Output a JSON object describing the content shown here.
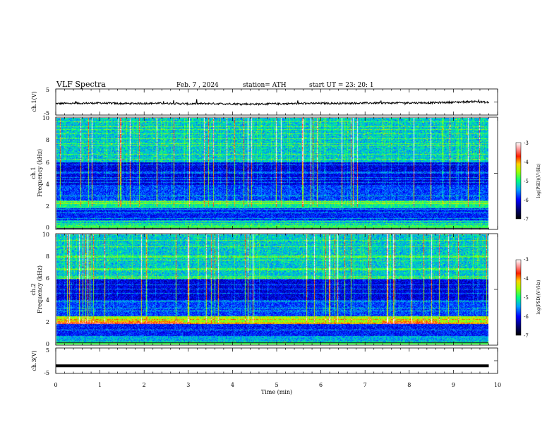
{
  "header": {
    "title": "VLF  Spectra",
    "date": "Feb. 7  , 2024",
    "station": "station= ATH",
    "start": "start  UT  =    23: 20: 1"
  },
  "chart_data": [
    {
      "type": "line",
      "name": "ch1-waveform",
      "ylabel": "ch.1(V)",
      "ylim": [
        -5,
        5
      ],
      "xlim": [
        0,
        10
      ],
      "yticks": [
        "5",
        "-5"
      ],
      "x": [
        0,
        0.5,
        1,
        1.5,
        2,
        2.5,
        3,
        3.5,
        4,
        4.5,
        5,
        5.5,
        6,
        6.5,
        7,
        7.5,
        8,
        8.5,
        9,
        9.5,
        9.8
      ],
      "y": [
        -0.6,
        -0.5,
        -0.4,
        -0.6,
        -0.5,
        -0.5,
        -0.7,
        -0.6,
        -0.7,
        -0.8,
        -0.7,
        -0.6,
        -0.5,
        -0.5,
        -0.4,
        -0.4,
        -0.3,
        -0.3,
        -0.1,
        0.2,
        -0.2
      ]
    },
    {
      "type": "heatmap",
      "name": "ch1-spectrogram",
      "ylabel_line1": "ch.1",
      "ylabel_line2": "Frequency (kHz)",
      "ylim": [
        0,
        10
      ],
      "xlim": [
        0,
        9.8
      ],
      "yticks": [
        "0",
        "2",
        "4",
        "6",
        "8",
        "10"
      ],
      "colorbar": {
        "label": "log(PSD)(V²/Hz)",
        "range": [
          -7,
          -3
        ],
        "ticks": [
          "-3",
          "-4",
          "-5",
          "-6",
          "-7"
        ]
      }
    },
    {
      "type": "heatmap",
      "name": "ch2-spectrogram",
      "ylabel_line1": "ch.2",
      "ylabel_line2": "Frequency (kHz)",
      "ylim": [
        0,
        10
      ],
      "xlim": [
        0,
        9.8
      ],
      "yticks": [
        "0",
        "2",
        "4",
        "6",
        "8",
        "10"
      ],
      "colorbar": {
        "label": "log(PSD)(V²/Hz)",
        "range": [
          -7,
          -3
        ],
        "ticks": [
          "-3",
          "-4",
          "-5",
          "-6",
          "-7"
        ]
      }
    },
    {
      "type": "line",
      "name": "ch3-waveform",
      "ylabel": "ch.3(V)",
      "ylim": [
        -5,
        5
      ],
      "xlim": [
        0,
        10
      ],
      "yticks": [
        "5",
        "-5"
      ],
      "x": [
        0,
        9.8
      ],
      "y": [
        -2,
        -2
      ]
    }
  ],
  "xaxis": {
    "label": "Time  (min)",
    "ticks": [
      "0",
      "1",
      "2",
      "3",
      "4",
      "5",
      "6",
      "7",
      "8",
      "9",
      "10"
    ]
  },
  "colors": {
    "low": "#000000",
    "mid_low": "#0000ff",
    "mid": "#00ff00",
    "high": "#ff0000",
    "top": "#ffffff"
  }
}
